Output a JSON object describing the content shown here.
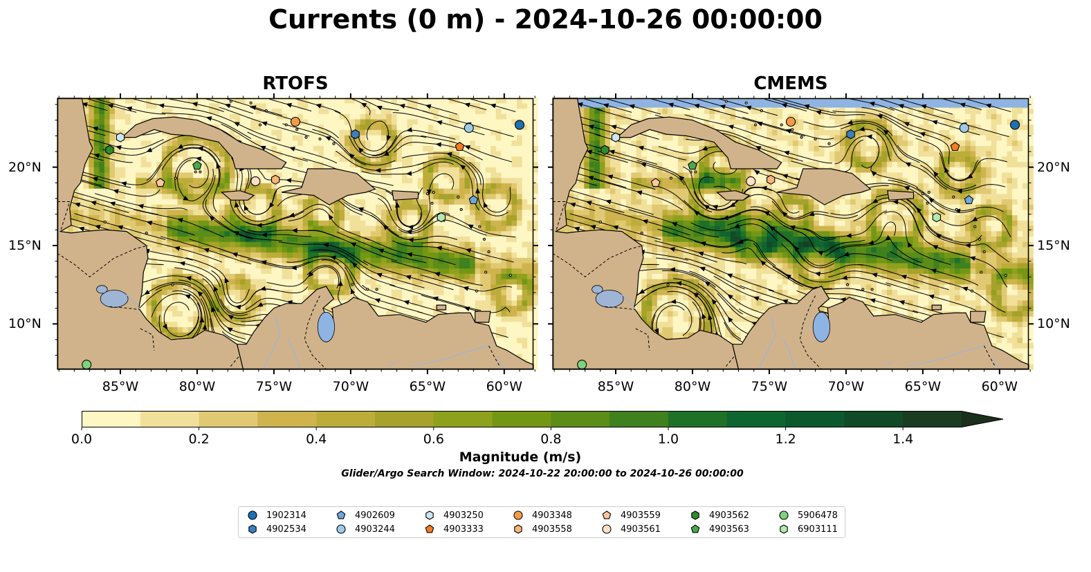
{
  "title": "Currents (0 m) - 2024-10-26 00:00:00",
  "panels": [
    {
      "title": "RTOFS"
    },
    {
      "title": "CMEMS"
    }
  ],
  "axes": {
    "x_ticks": [
      "85°W",
      "80°W",
      "75°W",
      "70°W",
      "65°W",
      "60°W"
    ],
    "x_values": [
      -85,
      -80,
      -75,
      -70,
      -65,
      -60
    ],
    "y_ticks": [
      "20°N",
      "15°N",
      "10°N"
    ],
    "y_values": [
      20,
      15,
      10
    ],
    "lon_range": [
      -89.1,
      -58.1
    ],
    "lat_range": [
      7.1,
      24.4
    ]
  },
  "colorbar": {
    "label": "Magnitude (m/s)",
    "ticks": [
      "0.0",
      "0.2",
      "0.4",
      "0.6",
      "0.8",
      "1.0",
      "1.2",
      "1.4"
    ],
    "tick_values": [
      0.0,
      0.2,
      0.4,
      0.6,
      0.8,
      1.0,
      1.2,
      1.4
    ],
    "range": [
      0.0,
      1.5
    ],
    "extend": "max",
    "colors": [
      "#fef6c3",
      "#f1e09a",
      "#e0c972",
      "#cfb44e",
      "#bcad3a",
      "#a6a22b",
      "#8ea11d",
      "#739714",
      "#5b8d18",
      "#3f801f",
      "#1f7127",
      "#0f6530",
      "#0b592d",
      "#124a28",
      "#1a3c22",
      "#1a2f1c"
    ]
  },
  "search_window": "Glider/Argo Search Window: 2024-10-22 20:00:00 to 2024-10-26 00:00:00",
  "colors": {
    "land": "#d1b38b",
    "water": "#8fb4e3",
    "river": "#9eb5d6",
    "legend_border": "#cccccc"
  },
  "floats": [
    {
      "id": "1902314",
      "marker": "circle",
      "color": "#1f6fb4",
      "lon": -59.0,
      "lat": 22.7
    },
    {
      "id": "4902534",
      "marker": "hexagon",
      "color": "#3a80c2",
      "lon": -69.7,
      "lat": 22.1
    },
    {
      "id": "4902609",
      "marker": "pentagon",
      "color": "#6fa8dc",
      "lon": -62.0,
      "lat": 17.9
    },
    {
      "id": "4903244",
      "marker": "circle",
      "color": "#9ecae6",
      "lon": -62.3,
      "lat": 22.5
    },
    {
      "id": "4903250",
      "marker": "hexagon",
      "color": "#cfe5f2",
      "lon": -85.0,
      "lat": 21.9
    },
    {
      "id": "4903333",
      "marker": "pentagon",
      "color": "#f47c20",
      "lon": -62.9,
      "lat": 21.3
    },
    {
      "id": "4903348",
      "marker": "circle",
      "color": "#f59a4a",
      "lon": -73.6,
      "lat": 22.9
    },
    {
      "id": "4903558",
      "marker": "hexagon",
      "color": "#f8b47a",
      "lon": -74.9,
      "lat": 19.2
    },
    {
      "id": "4903559",
      "marker": "pentagon",
      "color": "#fac7a0",
      "lon": -82.4,
      "lat": 19.0
    },
    {
      "id": "4903561",
      "marker": "circle",
      "color": "#fde0c5",
      "lon": -76.2,
      "lat": 19.1
    },
    {
      "id": "4903562",
      "marker": "hexagon",
      "color": "#2e8b2e",
      "lon": -85.7,
      "lat": 21.1
    },
    {
      "id": "4903563",
      "marker": "pentagon",
      "color": "#4aa84a",
      "lon": -80.0,
      "lat": 20.1
    },
    {
      "id": "5906478",
      "marker": "circle",
      "color": "#7fd27f",
      "lon": -87.2,
      "lat": 7.4
    },
    {
      "id": "6903111",
      "marker": "hexagon",
      "color": "#b5e8b0",
      "lon": -64.1,
      "lat": 16.8
    }
  ]
}
